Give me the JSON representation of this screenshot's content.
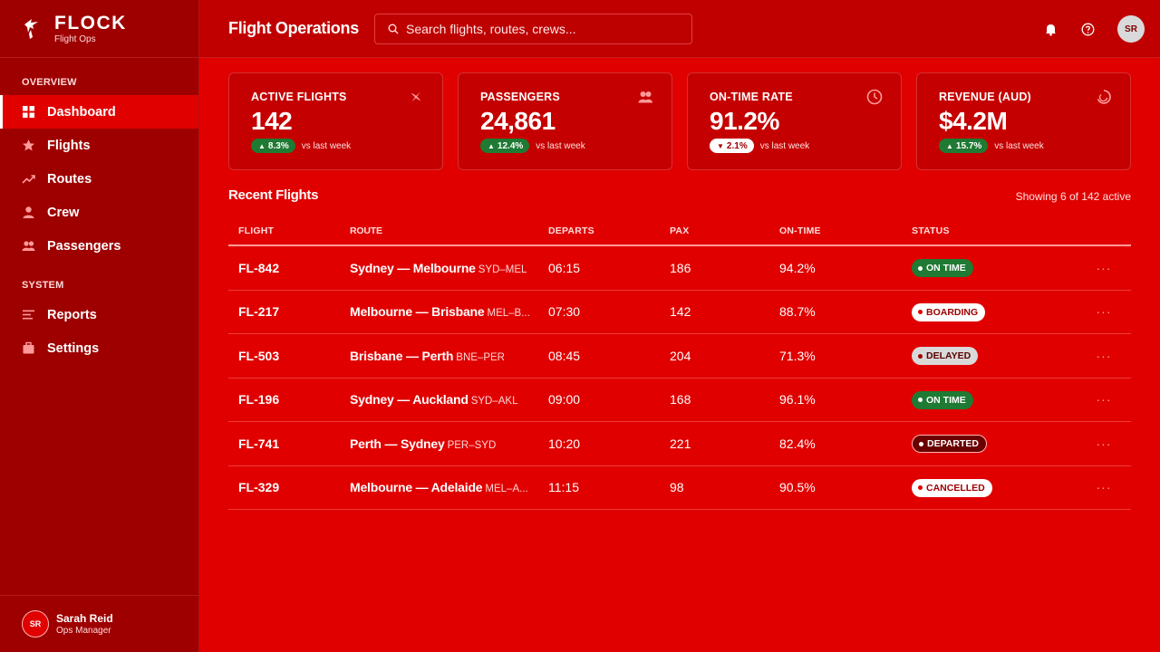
{
  "brand": {
    "name": "FLOCK",
    "subtitle": "Flight Ops"
  },
  "sidebar": {
    "sections": [
      {
        "title": "OVERVIEW",
        "items": [
          {
            "label": "Dashboard",
            "icon": "grid-icon",
            "active": true
          },
          {
            "label": "Flights",
            "icon": "star-icon"
          },
          {
            "label": "Routes",
            "icon": "trend-icon"
          },
          {
            "label": "Crew",
            "icon": "person-icon"
          },
          {
            "label": "Passengers",
            "icon": "people-icon"
          }
        ]
      },
      {
        "title": "SYSTEM",
        "items": [
          {
            "label": "Reports",
            "icon": "list-icon"
          },
          {
            "label": "Settings",
            "icon": "briefcase-icon"
          }
        ]
      }
    ]
  },
  "user": {
    "initials": "SR",
    "name": "Sarah Reid",
    "role": "Ops Manager"
  },
  "header": {
    "title": "Flight Operations",
    "search_placeholder": "Search flights, routes, crews...",
    "avatar_initials": "SR"
  },
  "stats": [
    {
      "label": "ACTIVE FLIGHTS",
      "value": "142",
      "delta": "8.3%",
      "direction": "up",
      "compare": "vs last week",
      "icon": "plane-icon"
    },
    {
      "label": "PASSENGERS",
      "value": "24,861",
      "delta": "12.4%",
      "direction": "up",
      "compare": "vs last week",
      "icon": "people-icon"
    },
    {
      "label": "ON-TIME RATE",
      "value": "91.2%",
      "delta": "2.1%",
      "direction": "down",
      "compare": "vs last week",
      "icon": "clock-icon"
    },
    {
      "label": "REVENUE (AUD)",
      "value": "$4.2M",
      "delta": "15.7%",
      "direction": "up",
      "compare": "vs last week",
      "icon": "spinner-icon"
    }
  ],
  "recent": {
    "title": "Recent Flights",
    "meta": "Showing 6 of 142 active",
    "columns": [
      "FLIGHT",
      "ROUTE",
      "DEPARTS",
      "PAX",
      "ON-TIME",
      "STATUS"
    ],
    "rows": [
      {
        "flight": "FL-842",
        "route": "Sydney — Melbourne",
        "code": "SYD–MEL",
        "departs": "06:15",
        "pax": "186",
        "ontime": "94.2%",
        "status": "ON TIME",
        "status_type": "ontime"
      },
      {
        "flight": "FL-217",
        "route": "Melbourne — Brisbane",
        "code": "MEL–B...",
        "departs": "07:30",
        "pax": "142",
        "ontime": "88.7%",
        "status": "BOARDING",
        "status_type": "boarding"
      },
      {
        "flight": "FL-503",
        "route": "Brisbane — Perth",
        "code": "BNE–PER",
        "departs": "08:45",
        "pax": "204",
        "ontime": "71.3%",
        "status": "DELAYED",
        "status_type": "delayed"
      },
      {
        "flight": "FL-196",
        "route": "Sydney — Auckland",
        "code": "SYD–AKL",
        "departs": "09:00",
        "pax": "168",
        "ontime": "96.1%",
        "status": "ON TIME",
        "status_type": "ontime"
      },
      {
        "flight": "FL-741",
        "route": "Perth — Sydney",
        "code": "PER–SYD",
        "departs": "10:20",
        "pax": "221",
        "ontime": "82.4%",
        "status": "DEPARTED",
        "status_type": "departed"
      },
      {
        "flight": "FL-329",
        "route": "Melbourne — Adelaide",
        "code": "MEL–A...",
        "departs": "11:15",
        "pax": "98",
        "ontime": "90.5%",
        "status": "CANCELLED",
        "status_type": "cancelled"
      }
    ],
    "more_glyph": "···"
  },
  "colors": {
    "background": "#e00000",
    "sidebar": "#9e0000",
    "header": "#c00000",
    "card": "#c50000",
    "success": "#1f7a33"
  }
}
